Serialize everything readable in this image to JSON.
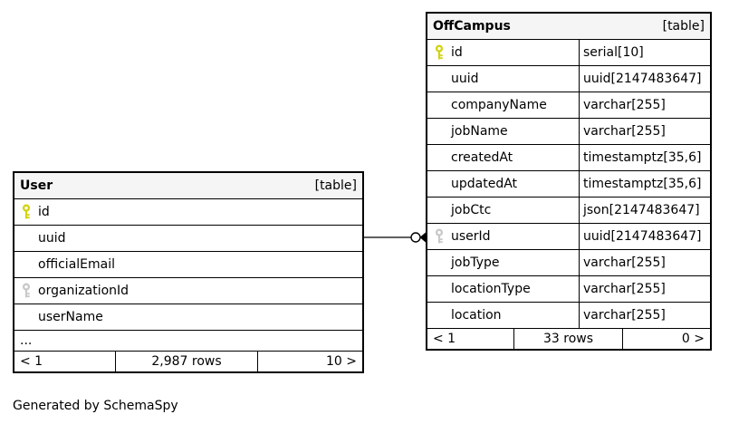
{
  "credit": "Generated by SchemaSpy",
  "colors": {
    "primary_key": "#d3d312",
    "foreign_key": "#c9c9c9",
    "header_bg": "#f5f5f5",
    "border": "#000000"
  },
  "relationship": {
    "from_table": "User",
    "from_column": "uuid",
    "to_table": "OffCampus",
    "to_column": "userId"
  },
  "tables": [
    {
      "name": "User",
      "badge": "[table]",
      "columns": [
        {
          "name": "id",
          "key": "primary"
        },
        {
          "name": "uuid",
          "key": null
        },
        {
          "name": "officialEmail",
          "key": null
        },
        {
          "name": "organizationId",
          "key": "foreign"
        },
        {
          "name": "userName",
          "key": null
        },
        {
          "name": "...",
          "key": null,
          "ellipsis": true
        }
      ],
      "footer": {
        "left": "< 1",
        "center": "2,987 rows",
        "right": "10 >"
      }
    },
    {
      "name": "OffCampus",
      "badge": "[table]",
      "columns": [
        {
          "name": "id",
          "type": "serial[10]",
          "key": "primary"
        },
        {
          "name": "uuid",
          "type": "uuid[2147483647]",
          "key": null
        },
        {
          "name": "companyName",
          "type": "varchar[255]",
          "key": null
        },
        {
          "name": "jobName",
          "type": "varchar[255]",
          "key": null
        },
        {
          "name": "createdAt",
          "type": "timestamptz[35,6]",
          "key": null
        },
        {
          "name": "updatedAt",
          "type": "timestamptz[35,6]",
          "key": null
        },
        {
          "name": "jobCtc",
          "type": "json[2147483647]",
          "key": null
        },
        {
          "name": "userId",
          "type": "uuid[2147483647]",
          "key": "foreign"
        },
        {
          "name": "jobType",
          "type": "varchar[255]",
          "key": null
        },
        {
          "name": "locationType",
          "type": "varchar[255]",
          "key": null
        },
        {
          "name": "location",
          "type": "varchar[255]",
          "key": null
        }
      ],
      "footer": {
        "left": "< 1",
        "center": "33 rows",
        "right": "0 >"
      }
    }
  ]
}
